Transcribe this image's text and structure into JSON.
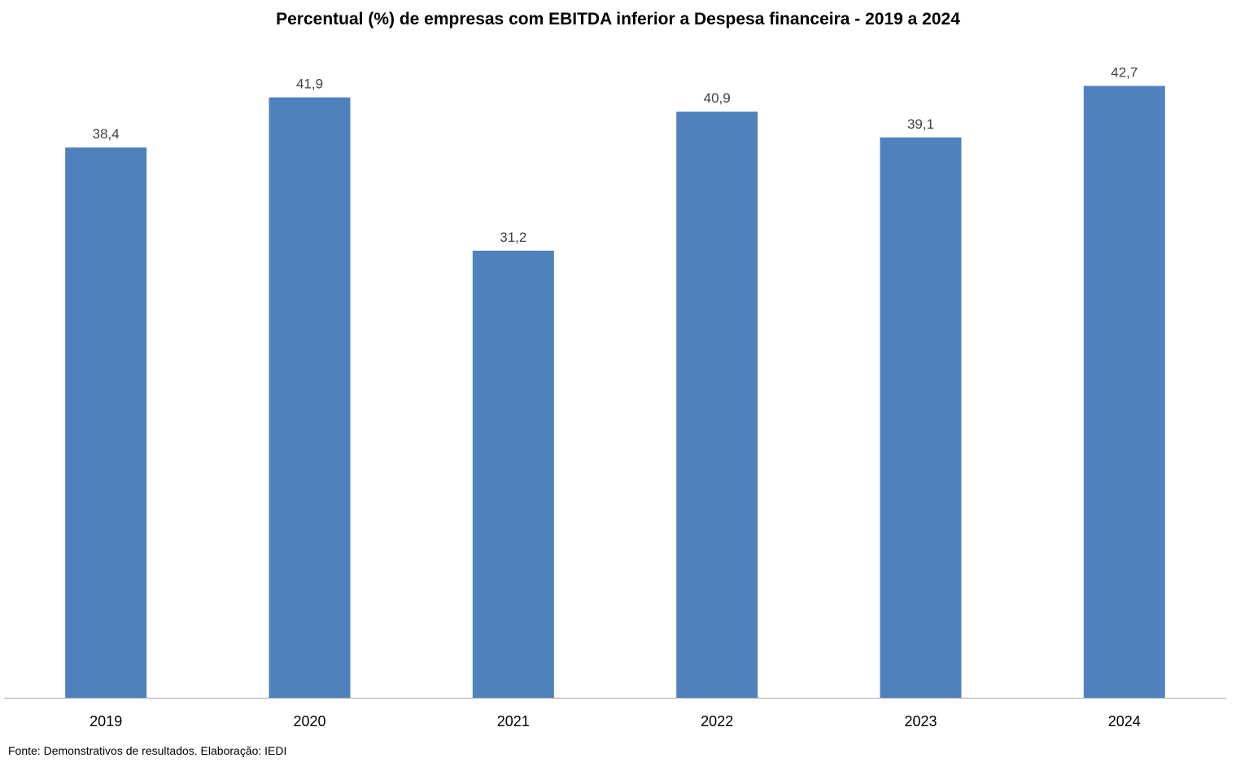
{
  "chart_data": {
    "type": "bar",
    "title": "Percentual (%) de empresas com EBITDA inferior a Despesa financeira - 2019 a 2024",
    "categories": [
      "2019",
      "2020",
      "2021",
      "2022",
      "2023",
      "2024"
    ],
    "values": [
      38.4,
      41.9,
      31.2,
      40.9,
      39.1,
      42.7
    ],
    "data_labels": [
      "38,4",
      "41,9",
      "31,2",
      "40,9",
      "39,1",
      "42,7"
    ],
    "ylim": [
      0,
      45
    ],
    "grid": false,
    "legend": "none",
    "bar_color": "#4F81BD",
    "axis_color": "#A6A6A6"
  },
  "footer": {
    "source": "Fonte: Demonstrativos de resultados. Elaboração: IEDI"
  }
}
